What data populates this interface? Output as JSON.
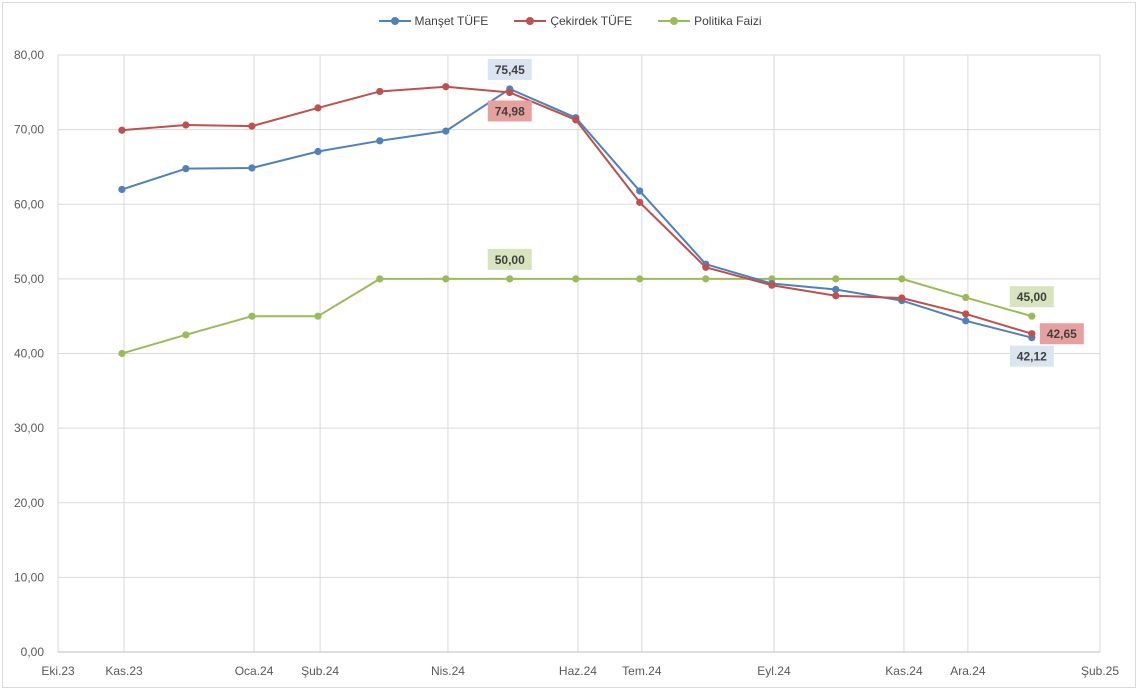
{
  "chart_data": {
    "type": "line",
    "title": "",
    "xlabel": "",
    "ylabel": "",
    "ylim": [
      0,
      80
    ],
    "yticks": [
      "0,00",
      "10,00",
      "20,00",
      "30,00",
      "40,00",
      "50,00",
      "60,00",
      "70,00",
      "80,00"
    ],
    "xticks": [
      "Eki.23",
      "Kas.23",
      "Oca.24",
      "Şub.24",
      "Nis.24",
      "Haz.24",
      "Tem.24",
      "Eyl.24",
      "Kas.24",
      "Ara.24",
      "Şub.25"
    ],
    "xtick_dates": [
      "2023-10-01",
      "2023-11-01",
      "2024-01-01",
      "2024-02-01",
      "2024-04-01",
      "2024-06-01",
      "2024-07-01",
      "2024-09-01",
      "2024-11-01",
      "2024-12-01",
      "2025-02-01"
    ],
    "x": [
      "2023-10-31",
      "2023-11-30",
      "2023-12-31",
      "2024-01-31",
      "2024-02-29",
      "2024-03-31",
      "2024-04-30",
      "2024-05-31",
      "2024-06-30",
      "2024-07-31",
      "2024-08-31",
      "2024-09-30",
      "2024-10-31",
      "2024-11-30",
      "2024-12-31"
    ],
    "grid": true,
    "legend_position": "top-center",
    "series": [
      {
        "name": "Manşet TÜFE",
        "color": "#4f81bd",
        "values": [
          61.98,
          64.77,
          64.86,
          67.07,
          68.5,
          69.8,
          75.45,
          71.6,
          61.78,
          51.97,
          49.38,
          48.58,
          47.09,
          44.38,
          42.12
        ]
      },
      {
        "name": "Çekirdek TÜFE",
        "color": "#c0504d",
        "values": [
          69.92,
          70.62,
          70.47,
          72.91,
          75.12,
          75.75,
          74.98,
          71.31,
          60.25,
          51.55,
          49.15,
          47.74,
          47.44,
          45.3,
          42.65
        ]
      },
      {
        "name": "Politika Faizi",
        "color": "#9bbb59",
        "values": [
          40.0,
          42.5,
          45.0,
          45.0,
          50.0,
          50.0,
          50.0,
          50.0,
          50.0,
          50.0,
          50.0,
          50.0,
          50.0,
          47.5,
          45.0
        ]
      }
    ],
    "annotations": [
      {
        "series": 0,
        "index": 6,
        "text": "75,45",
        "bg": "#dbe5f1",
        "place": "above"
      },
      {
        "series": 1,
        "index": 6,
        "text": "74,98",
        "bg": "#e6a19f",
        "place": "below"
      },
      {
        "series": 2,
        "index": 6,
        "text": "50,00",
        "bg": "#d7e4bd",
        "place": "above"
      },
      {
        "series": 2,
        "index": 14,
        "text": "45,00",
        "bg": "#d7e4bd",
        "place": "above"
      },
      {
        "series": 1,
        "index": 14,
        "text": "42,65",
        "bg": "#e6a19f",
        "place": "right"
      },
      {
        "series": 0,
        "index": 14,
        "text": "42,12",
        "bg": "#dbe5f1",
        "place": "below"
      }
    ],
    "grid_color": "#d9d9d9",
    "axis_text_color": "#595959",
    "label_text_color": "#404040"
  }
}
